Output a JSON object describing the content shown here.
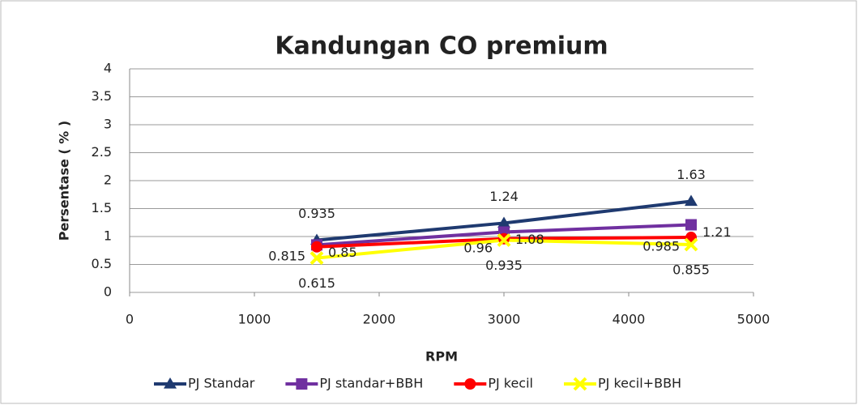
{
  "chart_data": {
    "type": "line",
    "title": "Kandungan CO premium",
    "x_label": "RPM",
    "y_label": "Persentase ( % )",
    "x": [
      1500,
      3000,
      4500
    ],
    "series": [
      {
        "name": "PJ Standar",
        "color": "#1f3a70",
        "marker": "triangle",
        "label_pos": "above",
        "values": [
          0.935,
          1.24,
          1.63
        ]
      },
      {
        "name": "PJ standar+BBH",
        "color": "#7030a0",
        "marker": "square",
        "label_pos": "right",
        "values": [
          0.85,
          1.08,
          1.21
        ]
      },
      {
        "name": "PJ kecil",
        "color": "#ff0000",
        "marker": "circle",
        "label_pos": "left",
        "values": [
          0.815,
          0.96,
          0.985
        ]
      },
      {
        "name": "PJ kecil+BBH",
        "color": "#ffff00",
        "marker": "x",
        "label_pos": "below",
        "values": [
          0.615,
          0.935,
          0.855
        ]
      }
    ],
    "xlim": [
      0,
      5000
    ],
    "xticks": [
      0,
      1000,
      2000,
      3000,
      4000,
      5000
    ],
    "ylim": [
      0,
      4
    ],
    "yticks": [
      0,
      0.5,
      1,
      1.5,
      2,
      2.5,
      3,
      3.5,
      4
    ],
    "grid": true,
    "legend": "bottom"
  }
}
